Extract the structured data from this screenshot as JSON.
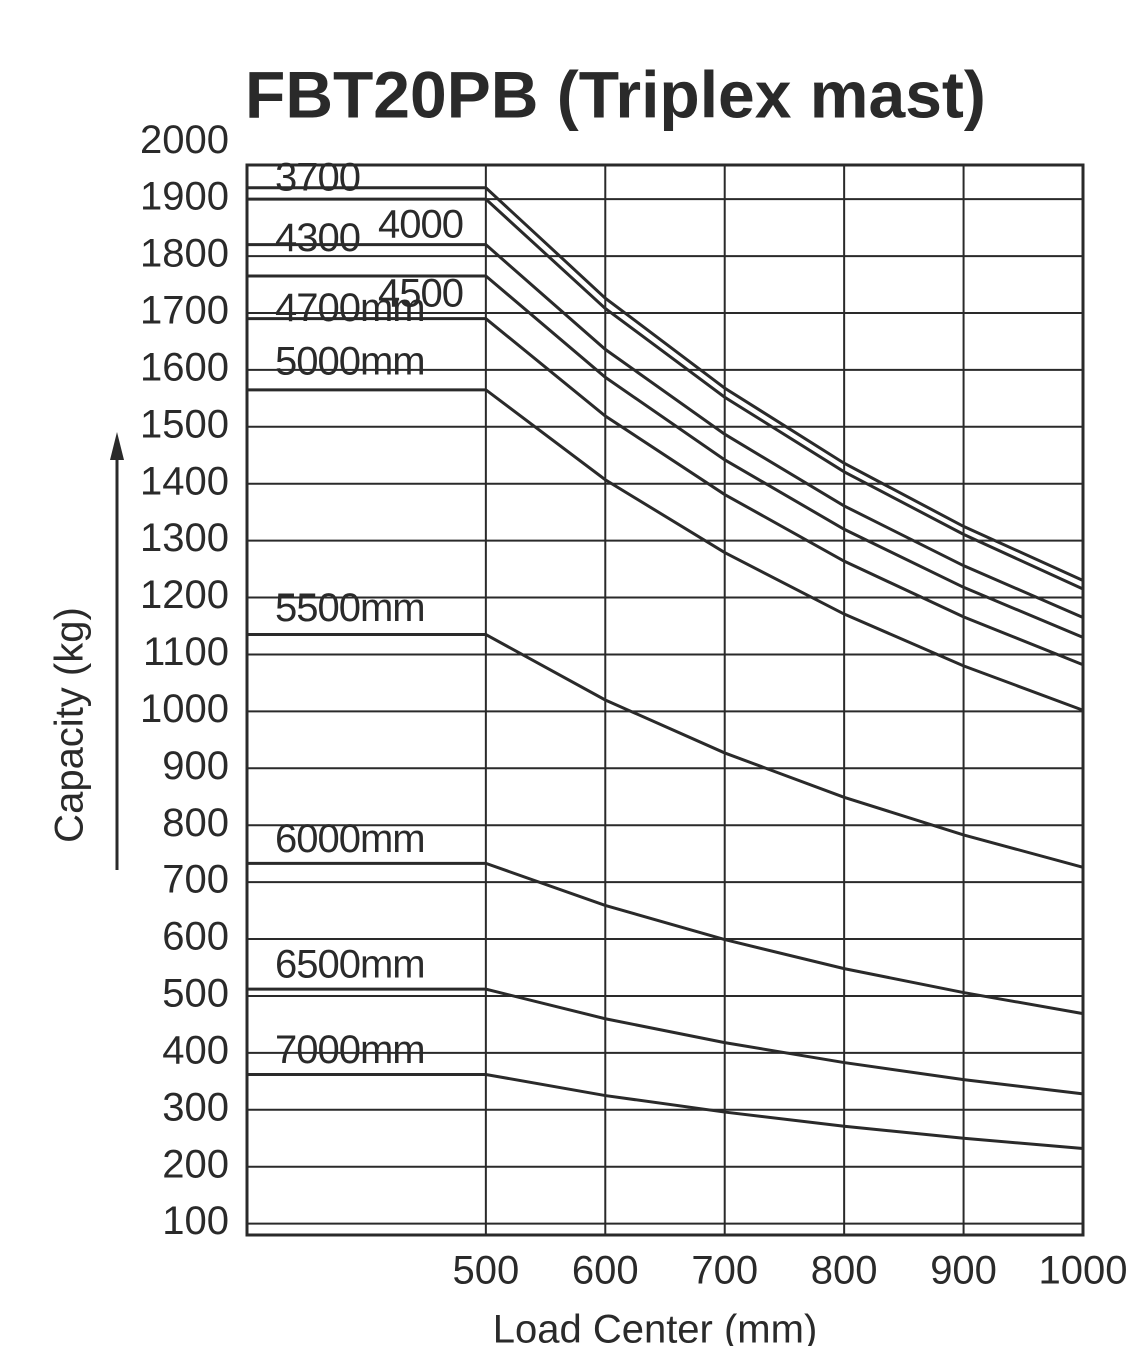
{
  "chart_data": {
    "type": "line",
    "title": "FBT20PB (Triplex mast)",
    "xlabel": "Load Center (mm)",
    "ylabel": "Capacity (kg)",
    "x": [
      300,
      500,
      600,
      700,
      800,
      900,
      1000
    ],
    "series": [
      {
        "name": "3700",
        "color": "#2a2a2a",
        "values": [
          1920,
          1920,
          1726,
          1568,
          1436,
          1325,
          1230
        ]
      },
      {
        "name": "4000",
        "color": "#2a2a2a",
        "values": [
          1900,
          1900,
          1708,
          1552,
          1421,
          1311,
          1215
        ]
      },
      {
        "name": "4300",
        "color": "#2a2a2a",
        "values": [
          1820,
          1820,
          1636,
          1487,
          1361,
          1256,
          1165
        ]
      },
      {
        "name": "4500",
        "color": "#2a2a2a",
        "values": [
          1765,
          1765,
          1587,
          1442,
          1320,
          1218,
          1130
        ]
      },
      {
        "name": "4700mm",
        "color": "#2a2a2a",
        "values": [
          1690,
          1690,
          1519,
          1381,
          1264,
          1166,
          1082
        ]
      },
      {
        "name": "5000mm",
        "color": "#2a2a2a",
        "values": [
          1565,
          1565,
          1407,
          1279,
          1171,
          1080,
          1002
        ]
      },
      {
        "name": "5500mm",
        "color": "#2a2a2a",
        "values": [
          1135,
          1135,
          1020,
          927,
          849,
          783,
          726
        ]
      },
      {
        "name": "6000mm",
        "color": "#2a2a2a",
        "values": [
          733,
          733,
          659,
          599,
          548,
          506,
          469
        ]
      },
      {
        "name": "6500mm",
        "color": "#2a2a2a",
        "values": [
          512,
          512,
          460,
          418,
          383,
          353,
          328
        ]
      },
      {
        "name": "7000mm",
        "color": "#2a2a2a",
        "values": [
          362,
          362,
          325,
          296,
          271,
          250,
          232
        ]
      }
    ],
    "xlim": [
      300,
      1000
    ],
    "xticks": [
      500,
      600,
      700,
      800,
      900,
      1000
    ],
    "ylim": [
      80,
      1960
    ],
    "yticks": [
      100,
      200,
      300,
      400,
      500,
      600,
      700,
      800,
      900,
      1000,
      1100,
      1200,
      1300,
      1400,
      1500,
      1600,
      1700,
      1800,
      1900,
      2000
    ],
    "grid": true
  }
}
